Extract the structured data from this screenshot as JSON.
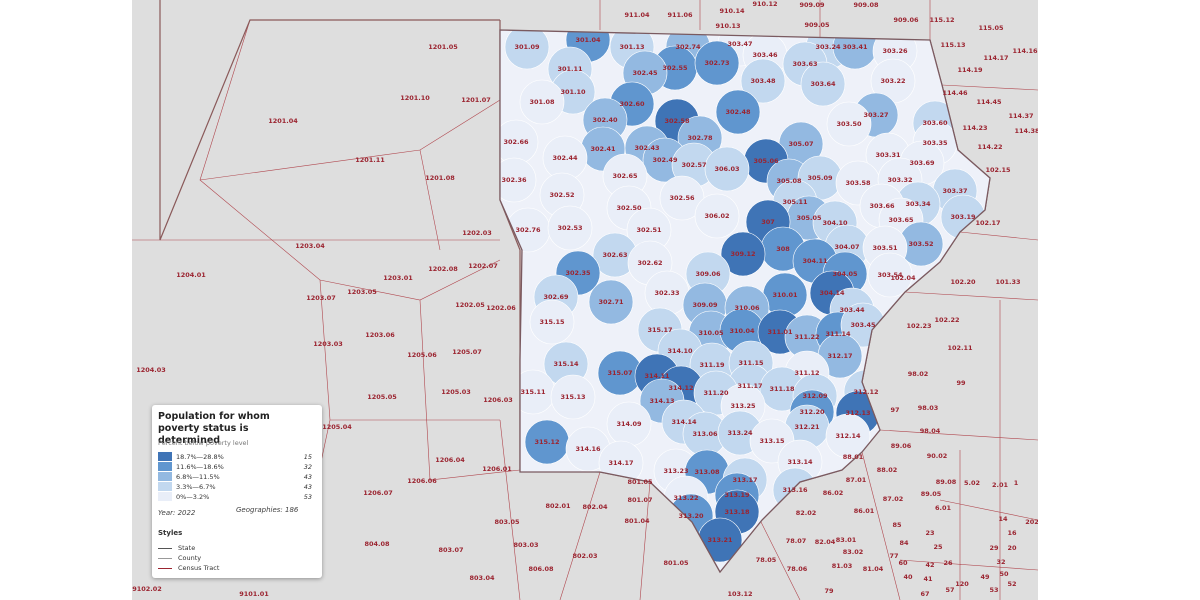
{
  "legend": {
    "title": "Population for whom poverty status is determined",
    "subtitle": "Percent below poverty level",
    "classes": [
      {
        "label": "18.7%—28.8%",
        "count": "15",
        "color": "#3f74b6"
      },
      {
        "label": "11.6%—18.6%",
        "count": "32",
        "color": "#6096cf"
      },
      {
        "label": "6.8%—11.5%",
        "count": "43",
        "color": "#93b9e1"
      },
      {
        "label": "3.3%—6.7%",
        "count": "43",
        "color": "#c2d8ef"
      },
      {
        "label": "0%—3.2%",
        "count": "53",
        "color": "#e9eef8"
      }
    ],
    "year": "Year: 2022",
    "geographies": "Geographies: 186",
    "styles_title": "Styles",
    "styles": [
      "State",
      "County",
      "Census Tract"
    ]
  },
  "tracts": [
    [
      "301.09",
      3
    ],
    [
      "301.04",
      1
    ],
    [
      "301.13",
      3
    ],
    [
      "302.74",
      2
    ],
    [
      "303.47",
      4
    ],
    [
      "303.24",
      3
    ],
    [
      "303.41",
      2
    ],
    [
      "303.26",
      4
    ],
    [
      "303.46",
      4
    ],
    [
      "303.63",
      3
    ],
    [
      "302.55",
      1
    ],
    [
      "302.73",
      1
    ],
    [
      "302.45",
      2
    ],
    [
      "301.11",
      3
    ],
    [
      "303.22",
      4
    ],
    [
      "303.48",
      3
    ],
    [
      "303.64",
      3
    ],
    [
      "301.10",
      3
    ],
    [
      "302.60",
      1
    ],
    [
      "301.08",
      4
    ],
    [
      "302.48",
      1
    ],
    [
      "303.27",
      2
    ],
    [
      "302.58",
      0
    ],
    [
      "302.40",
      2
    ],
    [
      "303.50",
      4
    ],
    [
      "303.60",
      3
    ],
    [
      "302.66",
      4
    ],
    [
      "302.78",
      2
    ],
    [
      "305.07",
      2
    ],
    [
      "303.35",
      4
    ],
    [
      "302.41",
      2
    ],
    [
      "302.43",
      2
    ],
    [
      "302.44",
      4
    ],
    [
      "302.49",
      2
    ],
    [
      "302.57",
      3
    ],
    [
      "305.06",
      0
    ],
    [
      "306.03",
      3
    ],
    [
      "303.31",
      4
    ],
    [
      "303.69",
      4
    ],
    [
      "302.65",
      4
    ],
    [
      "302.36",
      4
    ],
    [
      "305.08",
      2
    ],
    [
      "305.09",
      3
    ],
    [
      "303.58",
      4
    ],
    [
      "303.32",
      4
    ],
    [
      "303.37",
      3
    ],
    [
      "302.52",
      4
    ],
    [
      "302.56",
      4
    ],
    [
      "305.11",
      3
    ],
    [
      "303.34",
      3
    ],
    [
      "303.66",
      4
    ],
    [
      "302.50",
      4
    ],
    [
      "306.02",
      4
    ],
    [
      "305.05",
      2
    ],
    [
      "303.19",
      3
    ],
    [
      "303.65",
      4
    ],
    [
      "307",
      0
    ],
    [
      "304.10",
      3
    ],
    [
      "302.76",
      4
    ],
    [
      "302.53",
      4
    ],
    [
      "302.51",
      4
    ],
    [
      "303.52",
      2
    ],
    [
      "308",
      1
    ],
    [
      "304.07",
      3
    ],
    [
      "303.51",
      4
    ],
    [
      "302.63",
      3
    ],
    [
      "309.12",
      0
    ],
    [
      "302.62",
      4
    ],
    [
      "304.11",
      1
    ],
    [
      "303.54",
      4
    ],
    [
      "302.35",
      1
    ],
    [
      "309.06",
      3
    ],
    [
      "304.05",
      1
    ],
    [
      "310.01",
      1
    ],
    [
      "304.14",
      0
    ],
    [
      "302.33",
      4
    ],
    [
      "302.69",
      3
    ],
    [
      "302.71",
      2
    ],
    [
      "309.09",
      2
    ],
    [
      "310.06",
      2
    ],
    [
      "303.44",
      3
    ],
    [
      "315.15",
      4
    ],
    [
      "315.17",
      3
    ],
    [
      "310.05",
      2
    ],
    [
      "310.04",
      1
    ],
    [
      "311.01",
      0
    ],
    [
      "311.22",
      2
    ],
    [
      "311.14",
      1
    ],
    [
      "303.45",
      3
    ],
    [
      "314.10",
      3
    ],
    [
      "312.17",
      2
    ],
    [
      "315.14",
      3
    ],
    [
      "311.19",
      3
    ],
    [
      "311.15",
      3
    ],
    [
      "315.07",
      1
    ],
    [
      "314.11",
      0
    ],
    [
      "311.12",
      4
    ],
    [
      "314.12",
      0
    ],
    [
      "311.17",
      3
    ],
    [
      "311.18",
      3
    ],
    [
      "315.11",
      4
    ],
    [
      "315.13",
      4
    ],
    [
      "311.20",
      3
    ],
    [
      "312.12",
      3
    ],
    [
      "314.13",
      2
    ],
    [
      "312.09",
      3
    ],
    [
      "313.25",
      4
    ],
    [
      "312.20",
      1
    ],
    [
      "312.13",
      0
    ],
    [
      "314.09",
      4
    ],
    [
      "314.14",
      3
    ],
    [
      "312.21",
      3
    ],
    [
      "313.06",
      3
    ],
    [
      "313.24",
      3
    ],
    [
      "312.14",
      4
    ],
    [
      "315.12",
      1
    ],
    [
      "313.15",
      4
    ],
    [
      "314.16",
      4
    ],
    [
      "314.17",
      4
    ],
    [
      "313.14",
      4
    ],
    [
      "313.23",
      4
    ],
    [
      "313.08",
      1
    ],
    [
      "313.17",
      3
    ],
    [
      "313.16",
      3
    ],
    [
      "313.19",
      1
    ],
    [
      "313.22",
      4
    ],
    [
      "313.18",
      0
    ],
    [
      "313.20",
      1
    ],
    [
      "313.21",
      0
    ]
  ],
  "outside_labels": [
    "911.04",
    "911.06",
    "910.14",
    "910.12",
    "909.09",
    "909.08",
    "909.06",
    "115.12",
    "115.05",
    "910.13",
    "909.05",
    "115.13",
    "114.17",
    "114.16",
    "114.19",
    "114.46",
    "114.45",
    "114.37",
    "114.23",
    "114.38",
    "114.22",
    "102.15",
    "102.17",
    "102.04",
    "102.20",
    "101.33",
    "102.23",
    "102.22",
    "102.11",
    "98.02",
    "99",
    "97",
    "98.03",
    "98.04",
    "89.06",
    "90.02",
    "88.01",
    "88.02",
    "87.01",
    "89.08",
    "5.02",
    "2.01",
    "1",
    "86.02",
    "87.02",
    "89.05",
    "82.02",
    "86.01",
    "6.01",
    "14",
    "202",
    "85",
    "23",
    "16",
    "78.07",
    "82.04",
    "83.01",
    "84",
    "25",
    "29",
    "20",
    "83.02",
    "77",
    "78.05",
    "26",
    "32",
    "78.06",
    "81.03",
    "81.04",
    "60",
    "40",
    "41",
    "42",
    "49",
    "50",
    "53",
    "52",
    "120",
    "79",
    "103.12",
    "57",
    "67",
    "801.05",
    "801.07",
    "802.01",
    "802.04",
    "801.04",
    "803.05",
    "803.03",
    "802.03",
    "806.08",
    "801.05",
    "803.07",
    "804.08",
    "803.04",
    "9101.01",
    "9102.02",
    "1206.07",
    "1206.06",
    "1206.04",
    "1206.01",
    "1206.03",
    "1205.03",
    "1205.05",
    "1205.04",
    "1204.03",
    "1205.06",
    "1205.07",
    "1203.03",
    "1203.06",
    "1202.05",
    "1202.06",
    "1203.07",
    "1203.05",
    "1203.01",
    "1202.08",
    "1202.07",
    "1204.01",
    "1203.04",
    "1202.03",
    "1201.08",
    "1201.11",
    "1201.04",
    "1201.10",
    "1201.07",
    "1201.05"
  ]
}
